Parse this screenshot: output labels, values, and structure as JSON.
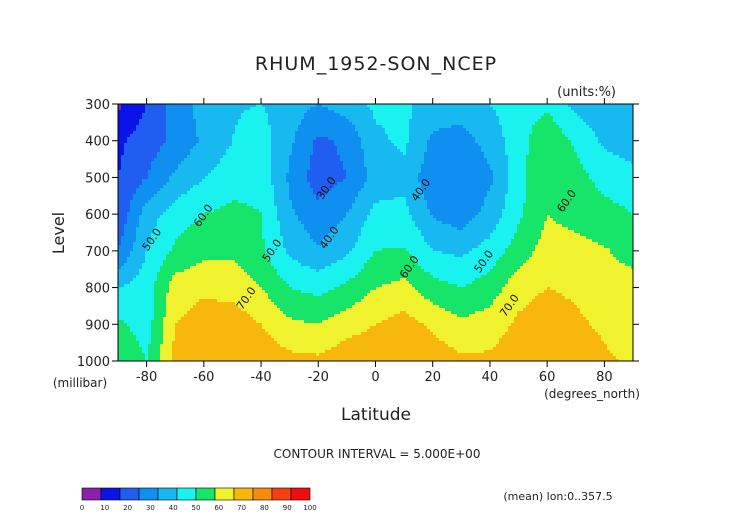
{
  "chart_data": {
    "type": "contour",
    "title": "RHUM_1952-SON_NCEP",
    "units_label": "(units:%)",
    "ylabel": "Level",
    "y_unit_label": "(millibar)",
    "xlabel": "Latitude",
    "x_unit_label": "(degrees_north)",
    "x_ticks": [
      "-80",
      "-60",
      "-40",
      "-20",
      "0",
      "20",
      "40",
      "60",
      "80"
    ],
    "x_tick_values": [
      -80,
      -60,
      -40,
      -20,
      0,
      20,
      40,
      60,
      80
    ],
    "y_ticks": [
      "300",
      "400",
      "500",
      "600",
      "700",
      "800",
      "900",
      "1000"
    ],
    "y_tick_values": [
      300,
      400,
      500,
      600,
      700,
      800,
      900,
      1000
    ],
    "xlim": [
      -90,
      90
    ],
    "ylim": [
      1000,
      300
    ],
    "contour_interval_label": "CONTOUR INTERVAL = 5.000E+00",
    "footer_note": "(mean) lon:0..357.5",
    "contour_labels": [
      {
        "text": "30.0",
        "lat": -17,
        "lev": 530
      },
      {
        "text": "40.0",
        "lat": -16,
        "lev": 665
      },
      {
        "text": "50.0",
        "lat": -36,
        "lev": 700
      },
      {
        "text": "60.0",
        "lat": -60,
        "lev": 605
      },
      {
        "text": "50.0",
        "lat": -78,
        "lev": 670
      },
      {
        "text": "70.0",
        "lat": -45,
        "lev": 830
      },
      {
        "text": "40.0",
        "lat": 16,
        "lev": 535
      },
      {
        "text": "60.0",
        "lat": 12,
        "lev": 745
      },
      {
        "text": "50.0",
        "lat": 38,
        "lev": 730
      },
      {
        "text": "70.0",
        "lat": 47,
        "lev": 850
      },
      {
        "text": "60.0",
        "lat": 67,
        "lev": 565
      }
    ],
    "colorbar": {
      "ticks": [
        "0",
        "10",
        "20",
        "30",
        "40",
        "50",
        "60",
        "70",
        "80",
        "90",
        "100"
      ],
      "colors": [
        "#8b1fae",
        "#0a14e6",
        "#1f5ef0",
        "#0f8ff0",
        "#18b9f0",
        "#19f2ee",
        "#16e56a",
        "#f0f22e",
        "#f8b70d",
        "#f88a0c",
        "#f7400f",
        "#ee0e0e"
      ]
    },
    "field": {
      "lat": [
        -90,
        -80,
        -70,
        -60,
        -50,
        -40,
        -30,
        -20,
        -10,
        0,
        10,
        20,
        30,
        40,
        50,
        60,
        70,
        80,
        90
      ],
      "lev": [
        300,
        400,
        500,
        600,
        700,
        800,
        900,
        1000
      ],
      "values": [
        [
          8,
          20,
          34,
          44,
          49,
          50,
          45,
          40,
          45,
          52,
          52,
          46,
          45,
          50,
          55,
          58,
          47,
          42,
          40
        ],
        [
          18,
          25,
          32,
          42,
          50,
          55,
          42,
          28,
          32,
          48,
          52,
          38,
          36,
          44,
          56,
          68,
          58,
          48,
          45
        ],
        [
          20,
          30,
          42,
          50,
          55,
          57,
          38,
          25,
          30,
          44,
          47,
          33,
          30,
          38,
          56,
          70,
          64,
          56,
          53
        ],
        [
          22,
          45,
          55,
          60,
          63,
          60,
          42,
          33,
          40,
          53,
          53,
          39,
          34,
          44,
          58,
          70,
          67,
          64,
          60
        ],
        [
          30,
          50,
          62,
          67,
          68,
          62,
          48,
          41,
          48,
          60,
          61,
          50,
          48,
          54,
          65,
          74,
          73,
          71,
          66
        ],
        [
          50,
          55,
          75,
          78,
          76,
          70,
          60,
          57,
          62,
          70,
          73,
          64,
          60,
          65,
          76,
          80,
          78,
          75,
          74
        ],
        [
          62,
          55,
          80,
          85,
          86,
          80,
          72,
          70,
          76,
          80,
          84,
          78,
          72,
          75,
          82,
          86,
          82,
          78,
          72
        ],
        [
          70,
          60,
          83,
          88,
          90,
          87,
          83,
          82,
          86,
          87,
          90,
          86,
          82,
          82,
          86,
          90,
          88,
          82,
          78
        ]
      ]
    }
  }
}
